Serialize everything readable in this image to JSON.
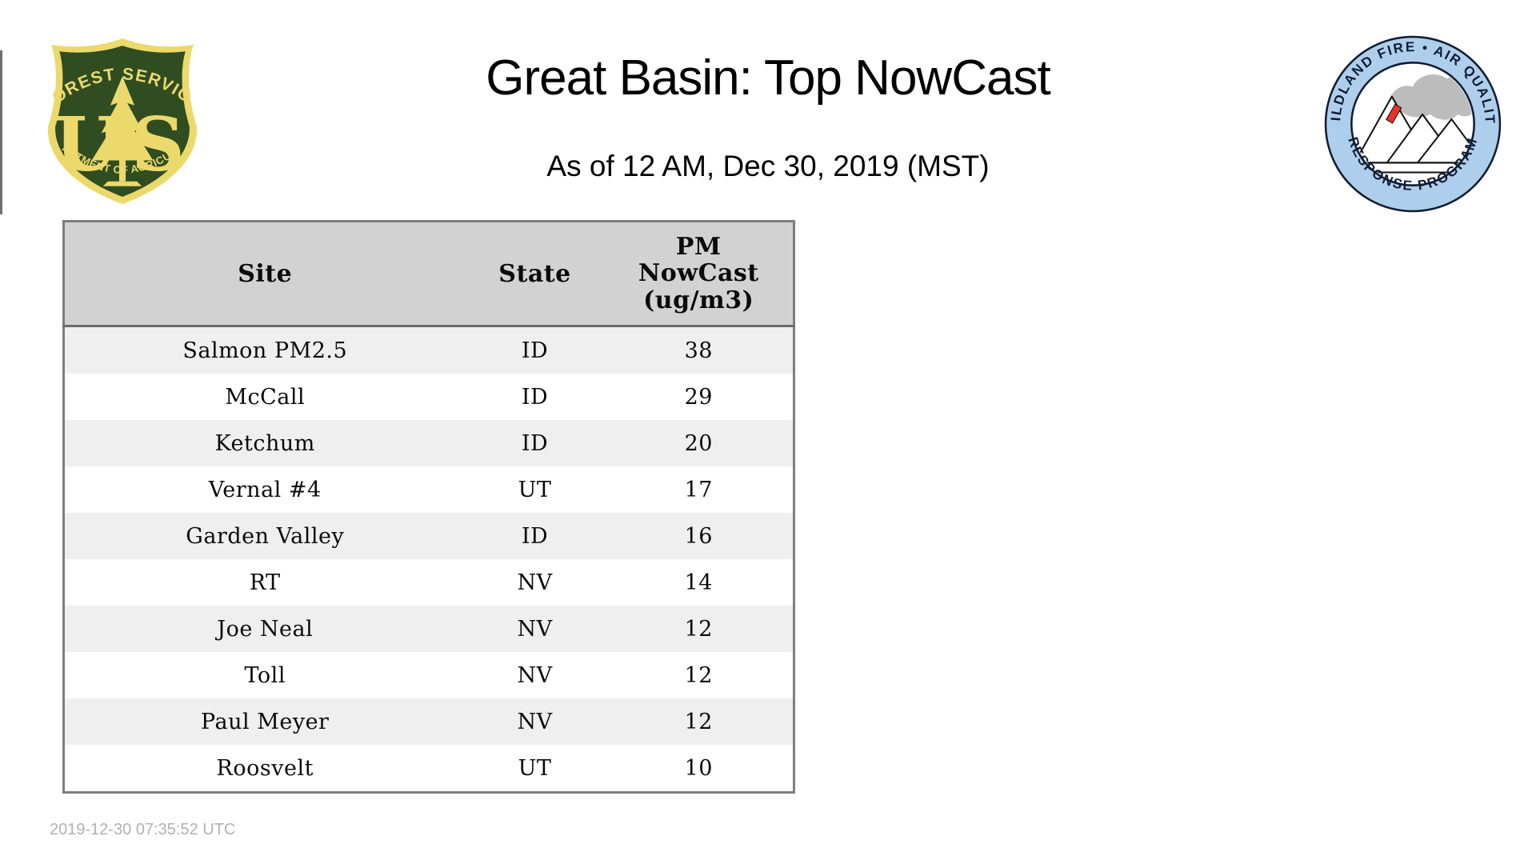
{
  "page": {
    "title": "Great Basin: Top NowCast",
    "subtitle": "As of 12 AM, Dec 30, 2019 (MST)",
    "timestamp": "2019-12-30 07:35:52 UTC"
  },
  "logos": {
    "forest_service": {
      "top_text": "FOREST SERVICE",
      "letter_u": "U",
      "letter_s": "S",
      "bottom_text": "DEPARTMENT OF AGRICULTURE",
      "green": "#2f4d21",
      "gold": "#ecd96b"
    },
    "wildland_fire": {
      "top_text": "WILDLAND FIRE • AIR QUALITY",
      "bottom_text": "RESPONSE PROGRAM",
      "ring_color": "#aecfec",
      "outline_color": "#101c33",
      "smoke_color": "#bcbcbc",
      "flame_color": "#e8332a"
    }
  },
  "table": {
    "header_site": "Site",
    "header_state": "State",
    "pm_header_lines": [
      "PM",
      "NowCast",
      "(ug/m3)"
    ],
    "colors": {
      "header_bg": "#d2d2d2",
      "row_alt_bg": "#efefef",
      "border": "#7e7e7e"
    }
  },
  "chart_data": {
    "type": "table",
    "title": "Great Basin: Top NowCast",
    "subtitle": "As of 12 AM, Dec 30, 2019 (MST)",
    "columns": [
      "Site",
      "State",
      "PM NowCast (ug/m3)"
    ],
    "rows": [
      [
        "Salmon PM2.5",
        "ID",
        38
      ],
      [
        "McCall",
        "ID",
        29
      ],
      [
        "Ketchum",
        "ID",
        20
      ],
      [
        "Vernal #4",
        "UT",
        17
      ],
      [
        "Garden Valley",
        "ID",
        16
      ],
      [
        "RT",
        "NV",
        14
      ],
      [
        "Joe Neal",
        "NV",
        12
      ],
      [
        "Toll",
        "NV",
        12
      ],
      [
        "Paul Meyer",
        "NV",
        12
      ],
      [
        "Roosvelt",
        "UT",
        10
      ]
    ],
    "footer": "2019-12-30 07:35:52 UTC"
  }
}
